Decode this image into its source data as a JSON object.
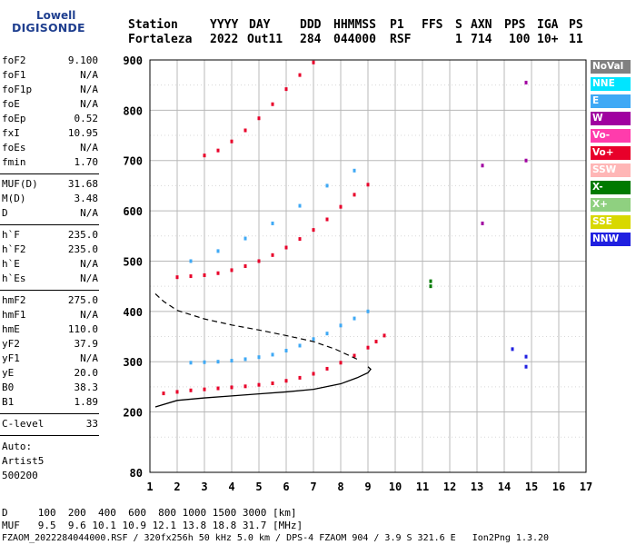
{
  "logo": {
    "line1": "Lowell",
    "line2": "DIGISONDE"
  },
  "header": {
    "labels": {
      "station": "Station",
      "yyyy": "YYYY",
      "day": "DAY",
      "ddd": "DDD",
      "hhmmss": "HHMMSS",
      "p1": "P1",
      "ffs": "FFS",
      "s": "S",
      "axn": "AXN",
      "pps": "PPS",
      "iga": "IGA",
      "ps": "PS"
    },
    "values": {
      "station": "Fortaleza",
      "yyyy": "2022",
      "day": "Out11",
      "ddd": "284",
      "hhmmss": "044000",
      "p1": "RSF",
      "ffs": "",
      "s": "1",
      "axn": "714",
      "pps": "100",
      "iga": "10+",
      "ps": "11"
    }
  },
  "params": {
    "group1": [
      {
        "label": "foF2",
        "value": "9.100"
      },
      {
        "label": "foF1",
        "value": "N/A"
      },
      {
        "label": "foF1p",
        "value": "N/A"
      },
      {
        "label": "foE",
        "value": "N/A"
      },
      {
        "label": "foEp",
        "value": "0.52"
      },
      {
        "label": "fxI",
        "value": "10.95"
      },
      {
        "label": "foEs",
        "value": "N/A"
      },
      {
        "label": "fmin",
        "value": "1.70"
      }
    ],
    "group2": [
      {
        "label": "MUF(D)",
        "value": "31.68"
      },
      {
        "label": "M(D)",
        "value": "3.48"
      },
      {
        "label": "D",
        "value": "N/A"
      }
    ],
    "group3": [
      {
        "label": "h`F",
        "value": "235.0"
      },
      {
        "label": "h`F2",
        "value": "235.0"
      },
      {
        "label": "h`E",
        "value": "N/A"
      },
      {
        "label": "h`Es",
        "value": "N/A"
      }
    ],
    "group4": [
      {
        "label": "hmF2",
        "value": "275.0"
      },
      {
        "label": "hmF1",
        "value": "N/A"
      },
      {
        "label": "hmE",
        "value": "110.0"
      },
      {
        "label": "yF2",
        "value": "37.9"
      },
      {
        "label": "yF1",
        "value": "N/A"
      },
      {
        "label": "yE",
        "value": "20.0"
      },
      {
        "label": "B0",
        "value": "38.3"
      },
      {
        "label": "B1",
        "value": "1.89"
      }
    ],
    "group5": [
      {
        "label": "C-level",
        "value": "33"
      }
    ],
    "auto": [
      "Auto:",
      "Artist5",
      "500200"
    ]
  },
  "legend": [
    {
      "label": "NoVal",
      "bg": "#808080",
      "fg": "#ffffff"
    },
    {
      "label": "NNE",
      "bg": "#00e5ff",
      "fg": "#ffffff"
    },
    {
      "label": "E",
      "bg": "#3fa9f5",
      "fg": "#ffffff"
    },
    {
      "label": "W",
      "bg": "#a000a0",
      "fg": "#ffffff"
    },
    {
      "label": "Vo-",
      "bg": "#ff3cac",
      "fg": "#ffffff"
    },
    {
      "label": "Vo+",
      "bg": "#e8002a",
      "fg": "#ffffff"
    },
    {
      "label": "SSW",
      "bg": "#ffb6b6",
      "fg": "#ffffff"
    },
    {
      "label": "X-",
      "bg": "#007a00",
      "fg": "#ffffff"
    },
    {
      "label": "X+",
      "bg": "#8fd080",
      "fg": "#ffffff"
    },
    {
      "label": "SSE",
      "bg": "#d8d800",
      "fg": "#ffffff"
    },
    {
      "label": "NNW",
      "bg": "#2020e0",
      "fg": "#ffffff"
    }
  ],
  "footer": {
    "line1": "D     100  200  400  600  800 1000 1500 3000 [km]",
    "line2": "MUF   9.5  9.6 10.1 10.9 12.1 13.8 18.8 31.7 [MHz]",
    "line3": "FZAOM_2022284044000.RSF / 320fx256h 50 kHz 5.0 km / DPS-4 FZAOM 904 / 3.9 S 321.6 E   Ion2Png 1.3.20"
  },
  "chart_data": {
    "type": "scatter",
    "title": "",
    "xlabel": "",
    "ylabel": "",
    "xlim": [
      1,
      17
    ],
    "ylim": [
      80,
      900
    ],
    "x_ticks": [
      1,
      2,
      3,
      4,
      5,
      6,
      7,
      8,
      9,
      10,
      11,
      12,
      13,
      14,
      15,
      16,
      17
    ],
    "y_ticks": [
      200,
      300,
      400,
      500,
      600,
      700,
      800,
      900
    ],
    "y_tick_labels": [
      "200",
      "300",
      "400",
      "500",
      "600",
      "700",
      "800",
      "900"
    ],
    "extra_y_tick": {
      "value": 80,
      "label": "80"
    },
    "grid": true,
    "series": [
      {
        "color": "#e8002a",
        "points": [
          [
            1.5,
            237
          ],
          [
            2.0,
            240
          ],
          [
            2.5,
            243
          ],
          [
            3.0,
            245
          ],
          [
            3.5,
            247
          ],
          [
            4.0,
            249
          ],
          [
            4.5,
            251
          ],
          [
            5.0,
            254
          ],
          [
            5.5,
            257
          ],
          [
            6.0,
            262
          ],
          [
            6.5,
            268
          ],
          [
            7.0,
            276
          ],
          [
            7.5,
            286
          ],
          [
            8.0,
            298
          ],
          [
            8.5,
            312
          ],
          [
            9.0,
            328
          ],
          [
            9.3,
            340
          ],
          [
            9.6,
            352
          ]
        ]
      },
      {
        "color": "#3fa9f5",
        "points": [
          [
            2.5,
            298
          ],
          [
            3.0,
            299
          ],
          [
            3.5,
            300
          ],
          [
            4.0,
            302
          ],
          [
            4.5,
            305
          ],
          [
            5.0,
            309
          ],
          [
            5.5,
            314
          ],
          [
            6.0,
            322
          ],
          [
            6.5,
            332
          ],
          [
            7.0,
            345
          ],
          [
            7.5,
            356
          ],
          [
            8.0,
            372
          ],
          [
            8.5,
            386
          ],
          [
            9.0,
            400
          ]
        ]
      },
      {
        "color": "#e8002a",
        "points": [
          [
            2.0,
            468
          ],
          [
            2.5,
            470
          ],
          [
            3.0,
            472
          ],
          [
            3.5,
            476
          ],
          [
            4.0,
            482
          ],
          [
            4.5,
            490
          ],
          [
            5.0,
            500
          ],
          [
            5.5,
            512
          ],
          [
            6.0,
            527
          ],
          [
            6.5,
            544
          ],
          [
            7.0,
            562
          ],
          [
            7.5,
            583
          ],
          [
            8.0,
            608
          ],
          [
            8.5,
            632
          ],
          [
            9.0,
            652
          ]
        ]
      },
      {
        "color": "#3fa9f5",
        "points": [
          [
            2.5,
            500
          ],
          [
            3.5,
            520
          ],
          [
            4.5,
            545
          ],
          [
            5.5,
            575
          ],
          [
            6.5,
            610
          ],
          [
            7.5,
            650
          ],
          [
            8.5,
            680
          ]
        ]
      },
      {
        "color": "#e8002a",
        "points": [
          [
            3.0,
            710
          ],
          [
            3.5,
            720
          ],
          [
            4.0,
            738
          ],
          [
            4.5,
            760
          ],
          [
            5.0,
            784
          ],
          [
            5.5,
            812
          ],
          [
            6.0,
            842
          ],
          [
            6.5,
            870
          ],
          [
            7.0,
            895
          ]
        ]
      },
      {
        "color": "#a000a0",
        "points": [
          [
            13.2,
            575
          ],
          [
            13.2,
            690
          ],
          [
            14.8,
            700
          ],
          [
            14.8,
            855
          ]
        ]
      },
      {
        "color": "#007a00",
        "points": [
          [
            11.3,
            450
          ],
          [
            11.3,
            460
          ]
        ]
      },
      {
        "color": "#2020e0",
        "points": [
          [
            14.3,
            325
          ],
          [
            14.8,
            310
          ],
          [
            14.8,
            290
          ]
        ]
      }
    ],
    "profile": {
      "x": [
        1.2,
        2,
        3,
        4,
        5,
        6,
        7,
        8,
        8.6,
        9.0,
        9.1,
        9.0
      ],
      "y": [
        210,
        223,
        228,
        232,
        236,
        240,
        245,
        256,
        268,
        278,
        285,
        290
      ]
    },
    "dashed": {
      "x": [
        1.2,
        1.5,
        2,
        3,
        4,
        5,
        6,
        7,
        7.8,
        8.6
      ],
      "y": [
        435,
        420,
        402,
        385,
        373,
        363,
        352,
        340,
        325,
        305
      ]
    }
  }
}
